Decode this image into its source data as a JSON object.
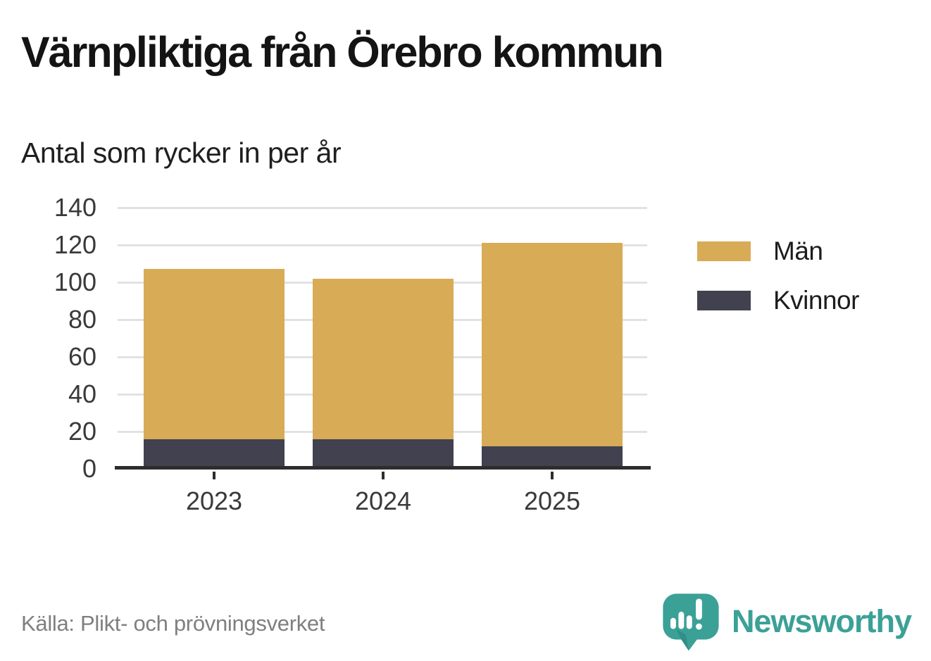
{
  "header": {
    "title": "Värnpliktiga från Örebro kommun",
    "subtitle": "Antal som rycker in per år"
  },
  "chart_data": {
    "type": "bar",
    "stacked": true,
    "categories": [
      "2023",
      "2024",
      "2025"
    ],
    "series": [
      {
        "name": "Män",
        "color": "#d8ab57",
        "values": [
          91,
          86,
          109
        ]
      },
      {
        "name": "Kvinnor",
        "color": "#414150",
        "values": [
          16,
          16,
          12
        ]
      }
    ],
    "totals": [
      107,
      102,
      121
    ],
    "title": "Värnpliktiga från Örebro kommun",
    "subtitle": "Antal som rycker in per år",
    "xlabel": "",
    "ylabel": "",
    "ylim": [
      0,
      140
    ],
    "yticks": [
      0,
      20,
      40,
      60,
      80,
      100,
      120,
      140
    ],
    "grid": true,
    "legend_position": "right"
  },
  "legend": {
    "items": [
      {
        "label": "Män",
        "color": "#d8ab57"
      },
      {
        "label": "Kvinnor",
        "color": "#414150"
      }
    ]
  },
  "footer": {
    "source": "Källa: Plikt- och prövningsverket",
    "brand": "Newsworthy",
    "brand_color": "#3ba197",
    "brand_color_dark": "#27847e"
  },
  "colors": {
    "gridline": "#e2e2e2",
    "axis": "#2d2d2d",
    "tick_label": "#3a3a3a"
  }
}
